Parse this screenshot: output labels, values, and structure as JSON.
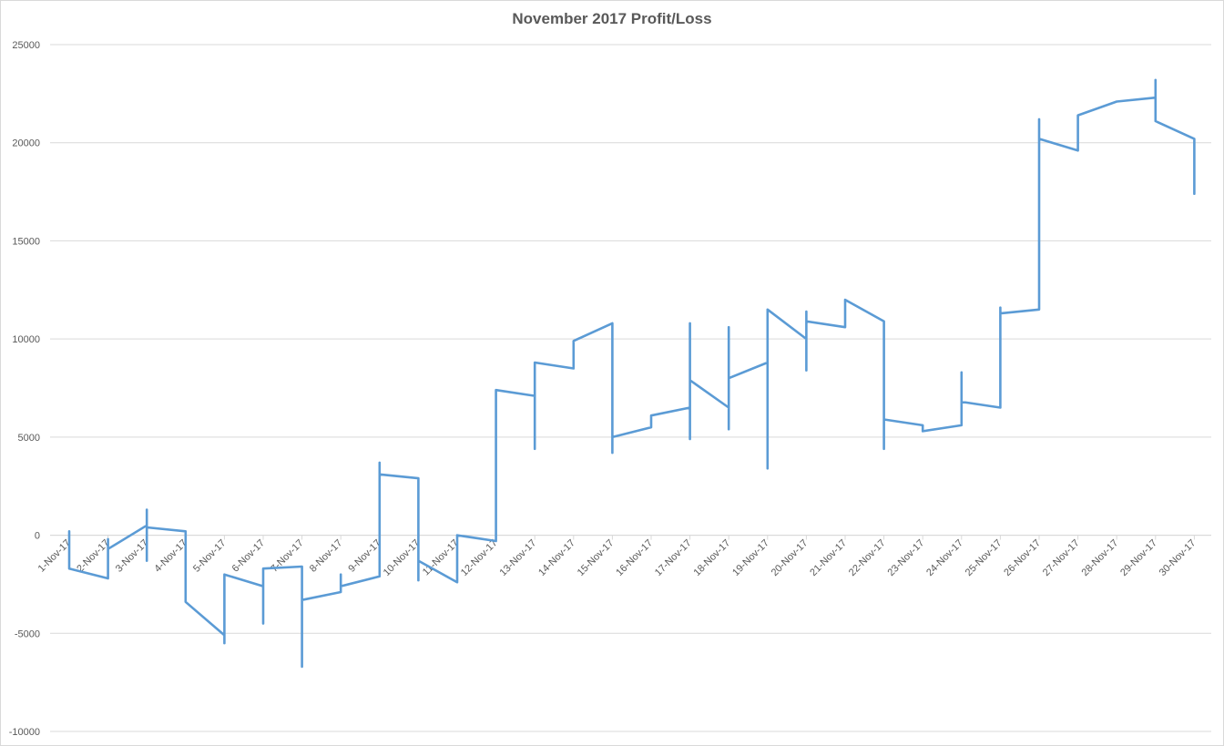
{
  "chart_data": {
    "type": "line",
    "title": "November 2017 Profit/Loss",
    "xlabel": "",
    "ylabel": "",
    "ylim": [
      -10000,
      25000
    ],
    "yticks": [
      25000,
      20000,
      15000,
      10000,
      5000,
      0,
      -5000,
      -10000
    ],
    "grid": true,
    "legend": "none",
    "color": "#5b9bd5",
    "categories": [
      "1-Nov-17",
      "2-Nov-17",
      "3-Nov-17",
      "4-Nov-17",
      "5-Nov-17",
      "6-Nov-17",
      "7-Nov-17",
      "8-Nov-17",
      "9-Nov-17",
      "10-Nov-17",
      "11-Nov-17",
      "12-Nov-17",
      "13-Nov-17",
      "14-Nov-17",
      "15-Nov-17",
      "16-Nov-17",
      "17-Nov-17",
      "18-Nov-17",
      "19-Nov-17",
      "20-Nov-17",
      "21-Nov-17",
      "22-Nov-17",
      "23-Nov-17",
      "24-Nov-17",
      "25-Nov-17",
      "26-Nov-17",
      "27-Nov-17",
      "28-Nov-17",
      "29-Nov-17",
      "30-Nov-17"
    ],
    "points": [
      [
        0,
        200
      ],
      [
        0,
        -1700
      ],
      [
        1,
        -2200
      ],
      [
        1,
        -200
      ],
      [
        1,
        -700
      ],
      [
        2,
        500
      ],
      [
        2,
        1300
      ],
      [
        2,
        -1300
      ],
      [
        2,
        400
      ],
      [
        3,
        200
      ],
      [
        3,
        -3400
      ],
      [
        4,
        -5100
      ],
      [
        4,
        -5500
      ],
      [
        4,
        -2000
      ],
      [
        5,
        -2600
      ],
      [
        5,
        -4500
      ],
      [
        5,
        -1700
      ],
      [
        6,
        -1600
      ],
      [
        6,
        -6700
      ],
      [
        6,
        -3300
      ],
      [
        7,
        -2900
      ],
      [
        7,
        -2000
      ],
      [
        7,
        -2600
      ],
      [
        8,
        -2100
      ],
      [
        8,
        3700
      ],
      [
        8,
        3100
      ],
      [
        9,
        2900
      ],
      [
        9,
        -2300
      ],
      [
        9,
        -1300
      ],
      [
        10,
        -2400
      ],
      [
        10,
        0
      ],
      [
        11,
        -300
      ],
      [
        11,
        7400
      ],
      [
        12,
        7100
      ],
      [
        12,
        4400
      ],
      [
        12,
        8800
      ],
      [
        13,
        8500
      ],
      [
        13,
        9900
      ],
      [
        14,
        10800
      ],
      [
        14,
        4200
      ],
      [
        14,
        5000
      ],
      [
        15,
        5500
      ],
      [
        15,
        6100
      ],
      [
        16,
        6500
      ],
      [
        16,
        4900
      ],
      [
        16,
        10800
      ],
      [
        16,
        7900
      ],
      [
        17,
        6500
      ],
      [
        17,
        5400
      ],
      [
        17,
        10600
      ],
      [
        17,
        8000
      ],
      [
        18,
        8800
      ],
      [
        18,
        3400
      ],
      [
        18,
        11500
      ],
      [
        19,
        10000
      ],
      [
        19,
        8400
      ],
      [
        19,
        11400
      ],
      [
        19,
        10900
      ],
      [
        20,
        10600
      ],
      [
        20,
        12000
      ],
      [
        21,
        10900
      ],
      [
        21,
        4400
      ],
      [
        21,
        5900
      ],
      [
        22,
        5600
      ],
      [
        22,
        5300
      ],
      [
        23,
        5600
      ],
      [
        23,
        8300
      ],
      [
        23,
        6800
      ],
      [
        24,
        6500
      ],
      [
        24,
        11600
      ],
      [
        24,
        11300
      ],
      [
        25,
        11500
      ],
      [
        25,
        21200
      ],
      [
        25,
        20200
      ],
      [
        26,
        19600
      ],
      [
        26,
        21400
      ],
      [
        27,
        22100
      ],
      [
        28,
        22300
      ],
      [
        28,
        23200
      ],
      [
        28,
        21100
      ],
      [
        29,
        20200
      ],
      [
        29,
        17400
      ]
    ]
  }
}
